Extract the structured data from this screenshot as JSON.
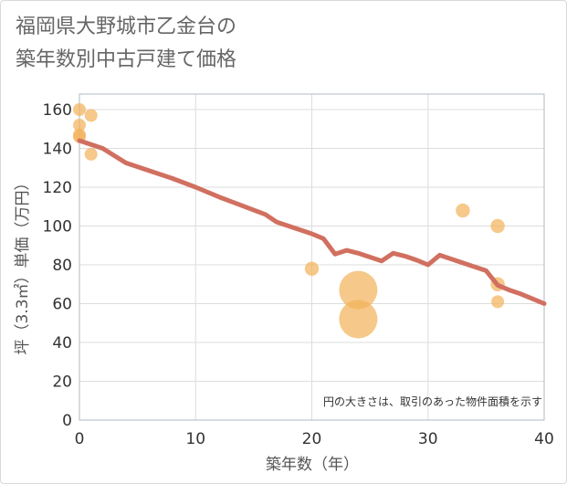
{
  "title_lines": [
    "福岡県大野城市乙金台の",
    "築年数別中古戸建て価格"
  ],
  "chart_data": {
    "type": "scatter",
    "xlabel": "築年数（年）",
    "ylabel": "坪（3.3㎡）単価（万円）",
    "xlim": [
      0,
      40
    ],
    "ylim": [
      0,
      168
    ],
    "xticks": [
      0,
      10,
      20,
      30,
      40
    ],
    "yticks": [
      0,
      20,
      40,
      60,
      80,
      100,
      120,
      140,
      160
    ],
    "grid": true,
    "note": "円の大きさは、取引のあった物件面積を示す",
    "points": [
      {
        "x": 0,
        "y": 160,
        "size": 1
      },
      {
        "x": 0,
        "y": 152,
        "size": 1
      },
      {
        "x": 0,
        "y": 147,
        "size": 1
      },
      {
        "x": 0,
        "y": 146,
        "size": 1
      },
      {
        "x": 1,
        "y": 157,
        "size": 1
      },
      {
        "x": 1,
        "y": 137,
        "size": 1
      },
      {
        "x": 20,
        "y": 78,
        "size": 1.1
      },
      {
        "x": 24,
        "y": 67,
        "size": 3
      },
      {
        "x": 24,
        "y": 52,
        "size": 3
      },
      {
        "x": 33,
        "y": 108,
        "size": 1.1
      },
      {
        "x": 36,
        "y": 100,
        "size": 1.1
      },
      {
        "x": 36,
        "y": 70,
        "size": 1.1
      },
      {
        "x": 36,
        "y": 61,
        "size": 1
      }
    ],
    "trend": {
      "x": [
        0,
        2,
        4,
        6,
        8,
        10,
        12,
        14,
        16,
        17,
        18,
        20,
        21,
        22,
        23,
        24,
        25,
        26,
        27,
        28,
        29,
        30,
        31,
        32,
        33,
        34,
        35,
        36,
        37,
        38,
        39,
        40
      ],
      "y": [
        144,
        140,
        132.5,
        128.5,
        124.5,
        120,
        115,
        110.5,
        106,
        102,
        100,
        96,
        93.5,
        85.5,
        87.5,
        86,
        84,
        82,
        86,
        84.5,
        82.5,
        80,
        85,
        83,
        81,
        79,
        77,
        69.5,
        67,
        65,
        62.5,
        60
      ]
    },
    "colors": {
      "trend": "#d17060",
      "points": "#f2b35b",
      "grid": "#dddddd",
      "plot_border": "#b0b8c0"
    }
  }
}
